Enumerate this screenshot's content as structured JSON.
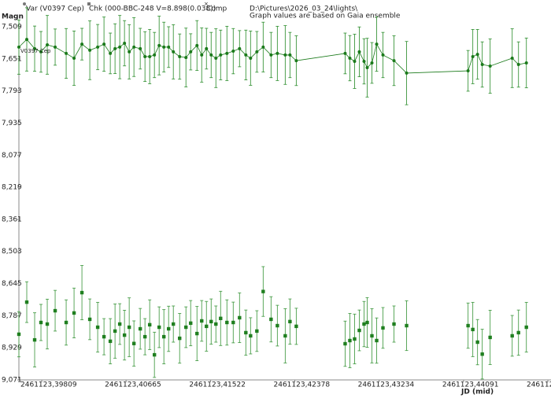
{
  "chart_data": {
    "type": "errorbar",
    "y_label": "Magn",
    "x_label": "JD (mid)",
    "comp_label": "Comp",
    "folder": "D:\\Pictures\\2026_03_24\\lights\\",
    "note": "Graph values are based on Gaia ensemble",
    "point_label": "V0397 Cep",
    "inverted_y": true,
    "xlim": [
      2461123.39577,
      2461123.44979
    ],
    "ylim": [
      7.509,
      9.071
    ],
    "yticks": [
      {
        "value": 7.509,
        "label": "7,509"
      },
      {
        "value": 7.651,
        "label": "7,651"
      },
      {
        "value": 7.793,
        "label": "7,793"
      },
      {
        "value": 7.935,
        "label": "7,935"
      },
      {
        "value": 8.077,
        "label": "8,077"
      },
      {
        "value": 8.219,
        "label": "8,219"
      },
      {
        "value": 8.361,
        "label": "8,361"
      },
      {
        "value": 8.503,
        "label": "8,503"
      },
      {
        "value": 8.645,
        "label": "8,645"
      },
      {
        "value": 8.787,
        "label": "8,787"
      },
      {
        "value": 8.929,
        "label": "8,929"
      },
      {
        "value": 9.071,
        "label": "9,071"
      }
    ],
    "xticks": [
      {
        "value": 2461123.39809,
        "label": "2461123,39809"
      },
      {
        "value": 2461123.40665,
        "label": "2461123,40665"
      },
      {
        "value": 2461123.41522,
        "label": "2461123,41522"
      },
      {
        "value": 2461123.42378,
        "label": "2461123,42378"
      },
      {
        "value": 2461123.43234,
        "label": "2461123,43234"
      },
      {
        "value": 2461123.44091,
        "label": "2461123,44091"
      },
      {
        "value": 2461123.44947,
        "label": "2461123"
      }
    ],
    "x": [
      2461123.39577,
      2461123.39657,
      2461123.39737,
      2461123.39801,
      2461123.39865,
      2461123.39945,
      2461123.40057,
      2461123.40137,
      2461123.40217,
      2461123.40297,
      2461123.40377,
      2461123.40441,
      2461123.40505,
      2461123.40553,
      2461123.40601,
      2461123.40649,
      2461123.40697,
      2461123.40745,
      2461123.40809,
      2461123.40857,
      2461123.40905,
      2461123.40953,
      2461123.41001,
      2461123.41049,
      2461123.41097,
      2461123.41145,
      2461123.41209,
      2461123.41273,
      2461123.41321,
      2461123.41385,
      2461123.41433,
      2461123.41481,
      2461123.41529,
      2461123.41577,
      2461123.41625,
      2461123.41689,
      2461123.41753,
      2461123.41817,
      2461123.41881,
      2461123.41929,
      2461123.41993,
      2461123.42057,
      2461123.42137,
      2461123.42201,
      2461123.42281,
      2461123.42329,
      2461123.42393,
      2461123.42889,
      2461123.42937,
      2461123.42985,
      2461123.43033,
      2461123.43081,
      2461123.43113,
      2461123.43161,
      2461123.43209,
      2461123.43273,
      2461123.43385,
      2461123.43513,
      2461123.44137,
      2461123.44185,
      2461123.44233,
      2461123.44281,
      2461123.44361,
      2461123.44585,
      2461123.44649,
      2461123.44729
    ],
    "series": [
      {
        "name": "Var (V0397 Cep)",
        "color": "#1a7a1a",
        "error_color": "#3c963c",
        "marker": "circle",
        "line": true,
        "values": [
          7.599,
          7.565,
          7.606,
          7.62,
          7.589,
          7.599,
          7.627,
          7.648,
          7.586,
          7.613,
          7.599,
          7.586,
          7.627,
          7.606,
          7.599,
          7.582,
          7.62,
          7.599,
          7.606,
          7.641,
          7.641,
          7.634,
          7.592,
          7.599,
          7.599,
          7.62,
          7.641,
          7.645,
          7.62,
          7.592,
          7.634,
          7.606,
          7.634,
          7.648,
          7.634,
          7.627,
          7.617,
          7.606,
          7.634,
          7.648,
          7.62,
          7.599,
          7.634,
          7.627,
          7.634,
          7.634,
          7.659,
          7.627,
          7.648,
          7.662,
          7.62,
          7.662,
          7.69,
          7.669,
          7.586,
          7.634,
          7.659,
          7.714,
          7.704,
          7.641,
          7.631,
          7.676,
          7.683,
          7.648,
          7.676,
          7.669
        ],
        "errors": [
          0.12,
          0.14,
          0.1,
          0.09,
          0.13,
          0.08,
          0.11,
          0.12,
          0.07,
          0.13,
          0.1,
          0.12,
          0.09,
          0.11,
          0.14,
          0.1,
          0.12,
          0.13,
          0.09,
          0.11,
          0.12,
          0.1,
          0.13,
          0.11,
          0.09,
          0.12,
          0.1,
          0.13,
          0.08,
          0.11,
          0.12,
          0.09,
          0.1,
          0.13,
          0.11,
          0.12,
          0.1,
          0.08,
          0.11,
          0.12,
          0.09,
          0.11,
          0.1,
          0.12,
          0.13,
          0.1,
          0.11,
          0.09,
          0.1,
          0.12,
          0.11,
          0.1,
          0.13,
          0.09,
          0.12,
          0.1,
          0.11,
          0.14,
          0.09,
          0.12,
          0.11,
          0.1,
          0.12,
          0.13,
          0.1,
          0.11
        ]
      },
      {
        "name": "Chk (000-BBC-248 V=8.898(0.038))",
        "color": "#1f7f1f",
        "error_color": "#4a9e4a",
        "marker": "square",
        "line": false,
        "values": [
          8.869,
          8.727,
          8.894,
          8.817,
          8.824,
          8.765,
          8.817,
          8.775,
          8.685,
          8.803,
          8.838,
          8.88,
          8.9,
          8.855,
          8.824,
          8.873,
          8.838,
          8.91,
          8.845,
          8.88,
          8.827,
          8.96,
          8.838,
          8.88,
          8.845,
          8.824,
          8.887,
          8.838,
          8.82,
          8.866,
          8.81,
          8.834,
          8.813,
          8.824,
          8.799,
          8.817,
          8.817,
          8.796,
          8.862,
          8.876,
          8.855,
          8.68,
          8.803,
          8.831,
          8.876,
          8.813,
          8.834,
          8.911,
          8.897,
          8.89,
          8.852,
          8.824,
          8.817,
          8.876,
          8.897,
          8.841,
          8.824,
          8.831,
          8.831,
          8.848,
          8.904,
          8.957,
          8.883,
          8.876,
          8.862,
          8.838
        ],
        "errors": [
          0.1,
          0.09,
          0.12,
          0.08,
          0.11,
          0.09,
          0.1,
          0.11,
          0.12,
          0.09,
          0.11,
          0.08,
          0.1,
          0.12,
          0.09,
          0.11,
          0.13,
          0.1,
          0.09,
          0.08,
          0.11,
          0.1,
          0.09,
          0.12,
          0.1,
          0.08,
          0.11,
          0.09,
          0.1,
          0.12,
          0.09,
          0.11,
          0.1,
          0.08,
          0.12,
          0.1,
          0.09,
          0.11,
          0.1,
          0.08,
          0.09,
          0.11,
          0.1,
          0.09,
          0.12,
          0.1,
          0.08,
          0.1,
          0.12,
          0.11,
          0.09,
          0.1,
          0.11,
          0.12,
          0.1,
          0.09,
          0.08,
          0.11,
          0.1,
          0.12,
          0.1,
          0.11,
          0.12,
          0.09,
          0.1,
          0.11
        ]
      }
    ]
  }
}
